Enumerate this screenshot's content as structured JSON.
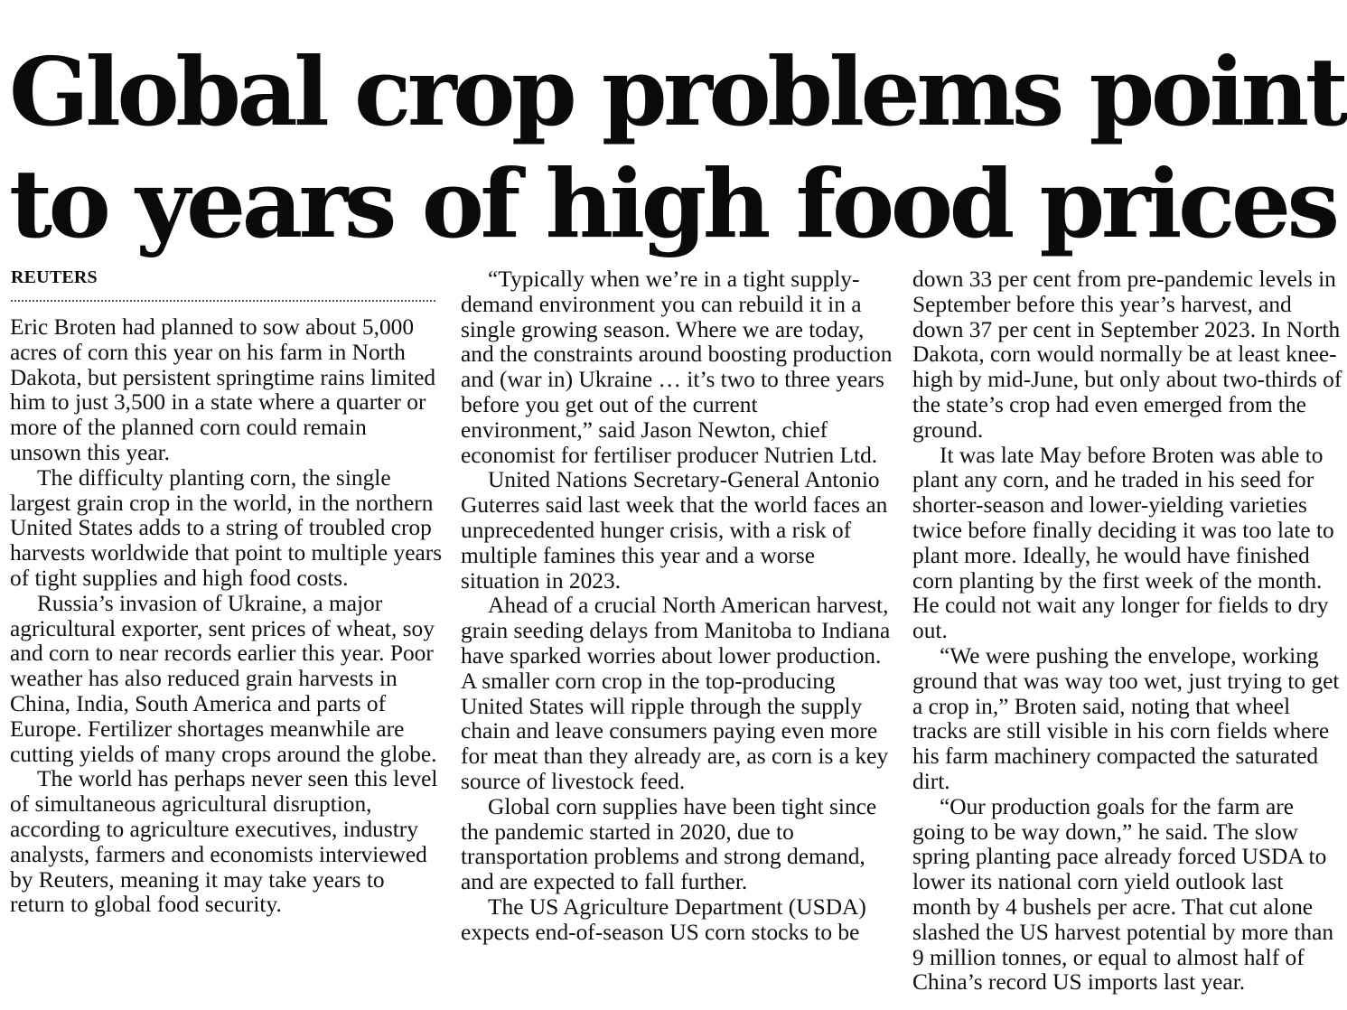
{
  "article": {
    "headline_line1": "Global crop problems point",
    "headline_line2": "to years of high food prices",
    "byline": "REUTERS"
  },
  "columns": [
    {
      "paragraphs": [
        "Eric Broten had planned to sow about 5,000 acres of corn this year on his farm in North Dakota, but persistent springtime rains limited him to just 3,500 in a state where a quarter or more of the planned corn could remain unsown this year.",
        "The difficulty planting corn, the single largest grain crop in the world, in the northern United States adds to a string of troubled crop harvests worldwide that point to multiple years of tight supplies and high food costs.",
        "Russia’s invasion of Ukraine, a major agricultural exporter, sent prices of wheat, soy and corn to near records earlier this year. Poor weather has also reduced grain harvests in China, India, South America and parts of Europe. Fertilizer shortages meanwhile are cutting yields of many crops around the globe.",
        "The world has perhaps never seen this level of simultaneous agricultural disruption, according to agriculture executives, industry analysts, farmers and economists interviewed by Reuters, meaning it may take years to return to global food security."
      ]
    },
    {
      "paragraphs": [
        "“Typically when we’re in a tight supply-demand environment you can rebuild it in a single growing season. Where we are today, and the constraints around boosting production and (war in) Ukraine … it’s two to three years before you get out of the current environment,” said Jason Newton, chief economist for fertiliser producer Nutrien Ltd.",
        "United Nations Secretary-General Antonio Guterres said last week that the world faces an unprecedented hunger crisis, with a risk of multiple famines this year and a worse situation in 2023.",
        "Ahead of a crucial North American harvest, grain seeding delays from Manitoba to Indiana have sparked worries about lower production. A smaller corn crop in the top-producing United States will ripple through the supply chain and leave consumers paying even more for meat than they already are, as corn is a key source of livestock feed.",
        "Global corn supplies have been tight since the pandemic started in 2020, due to transportation problems and strong demand, and are expected to fall further.",
        "The US Agriculture Department (USDA) expects end-of-season US corn stocks to be"
      ]
    },
    {
      "paragraphs": [
        "down 33 per cent from pre-pandemic levels in September before this year’s harvest, and down 37 per cent in September 2023. In North Dakota, corn would normally be at least knee-high by mid-June, but only about two-thirds of the state’s crop had even emerged from the ground.",
        "It was late May before Broten was able to plant any corn, and he traded in his seed for shorter-season and lower-yielding varieties twice before finally deciding it was too late to plant more. Ideally, he would have finished corn planting by the first week of the month. He could not wait any longer for fields to dry out.",
        "“We were pushing the envelope, working ground that was way too wet, just trying to get a crop in,” Broten said, noting that wheel tracks are still visible in his corn fields where his farm machinery compacted the saturated dirt.",
        "“Our production goals for the farm are going to be way down,” he said. The slow spring planting pace already forced USDA to lower its national corn yield outlook last month by 4 bushels per acre. That cut alone slashed the US harvest potential by more than 9 million tonnes, or equal to almost half of China’s record US imports last year."
      ]
    }
  ]
}
